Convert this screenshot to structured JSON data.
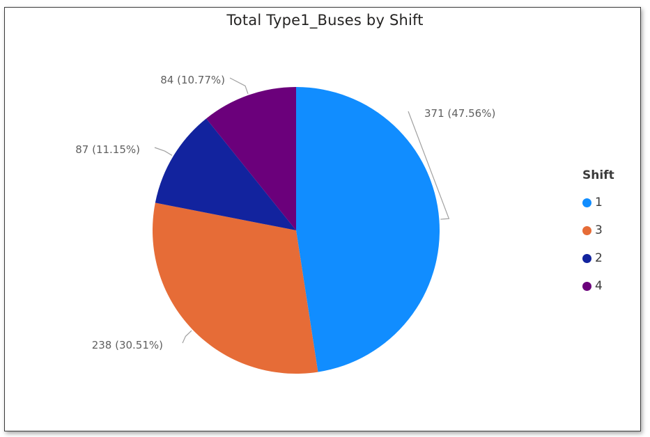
{
  "chart_data": {
    "type": "pie",
    "title": "Total Type1_Buses by Shift",
    "legend_title": "Shift",
    "legend_position": "right",
    "slices": [
      {
        "label": "1",
        "value": 371,
        "percent": 47.56,
        "color": "#118DFF",
        "data_label": "371 (47.56%)"
      },
      {
        "label": "3",
        "value": 238,
        "percent": 30.51,
        "color": "#E66C37",
        "data_label": "238 (30.51%)"
      },
      {
        "label": "2",
        "value": 87,
        "percent": 11.15,
        "color": "#12239E",
        "data_label": "87 (11.15%)"
      },
      {
        "label": "4",
        "value": 84,
        "percent": 10.77,
        "color": "#6B007B",
        "data_label": "84 (10.77%)"
      }
    ]
  }
}
